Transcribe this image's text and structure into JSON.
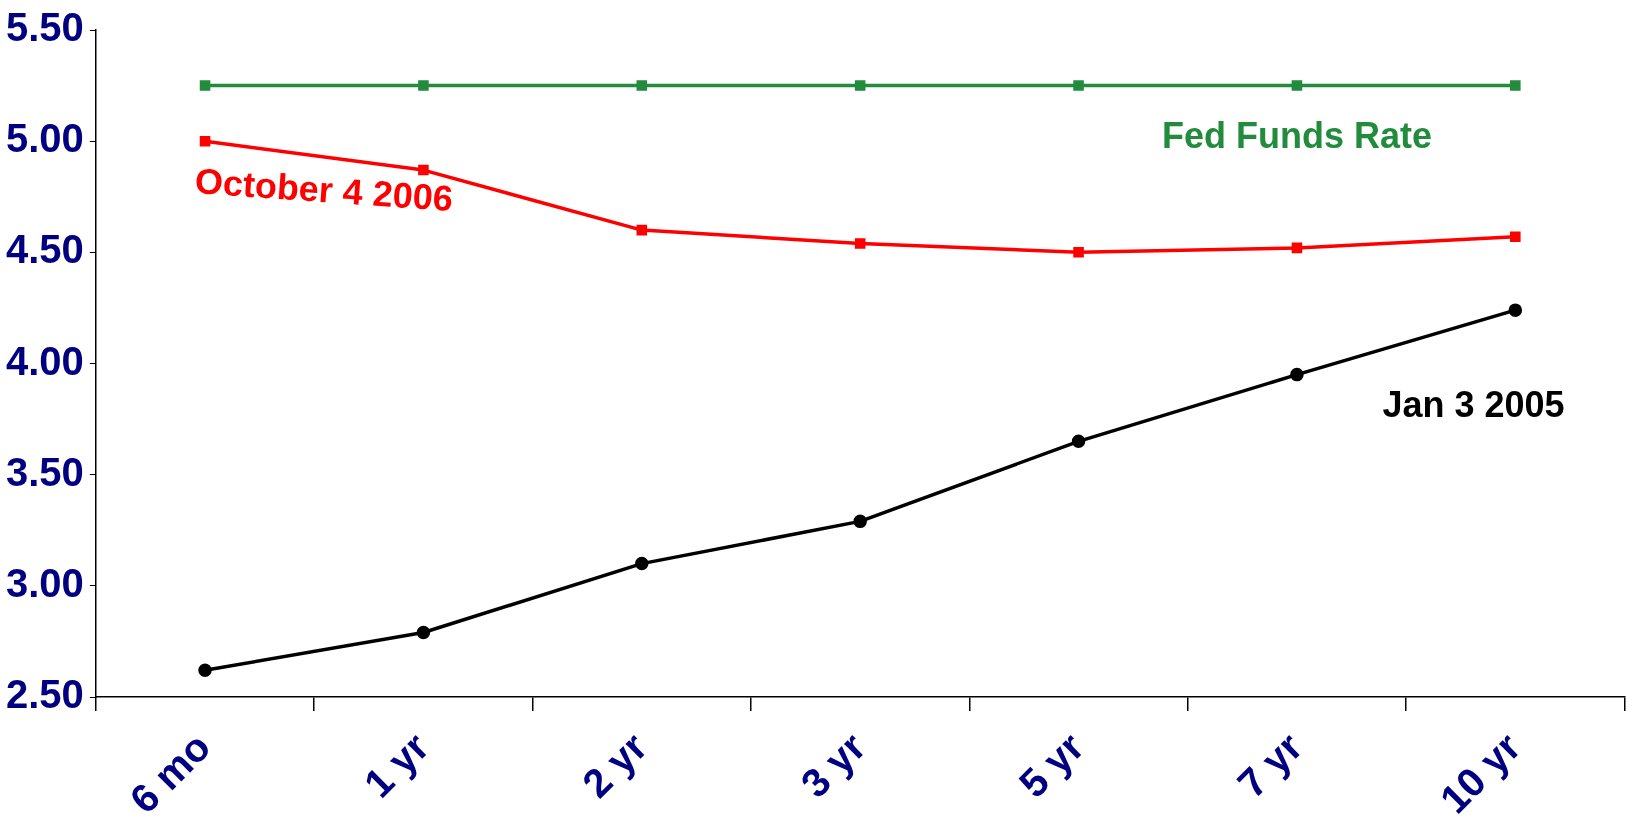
{
  "chart_data": {
    "type": "line",
    "categories": [
      "6 mo",
      "1 yr",
      "2 yr",
      "3 yr",
      "5 yr",
      "7 yr",
      "10 yr"
    ],
    "series": [
      {
        "name": "Fed Funds Rate",
        "color": "#228b3c",
        "marker": "square",
        "values": [
          5.25,
          5.25,
          5.25,
          5.25,
          5.25,
          5.25,
          5.25
        ]
      },
      {
        "name": "October 4 2006",
        "color": "#ff0000",
        "marker": "square",
        "values": [
          5.0,
          4.87,
          4.6,
          4.54,
          4.5,
          4.52,
          4.57
        ]
      },
      {
        "name": "Jan 3 2005",
        "color": "#000000",
        "marker": "circle",
        "values": [
          2.62,
          2.79,
          3.1,
          3.29,
          3.65,
          3.95,
          4.24
        ]
      }
    ],
    "ylim": [
      2.5,
      5.5
    ],
    "yticks": [
      {
        "value": 2.5,
        "label": "2.50"
      },
      {
        "value": 3,
        "label": "3.00"
      },
      {
        "value": 3.5,
        "label": "3.50"
      },
      {
        "value": 4,
        "label": "4.00"
      },
      {
        "value": 4.5,
        "label": "4.50"
      },
      {
        "value": 5,
        "label": "5.00"
      },
      {
        "value": 5.5,
        "label": "5.50"
      }
    ],
    "grid": false,
    "legend": false,
    "line_style": "solid"
  }
}
